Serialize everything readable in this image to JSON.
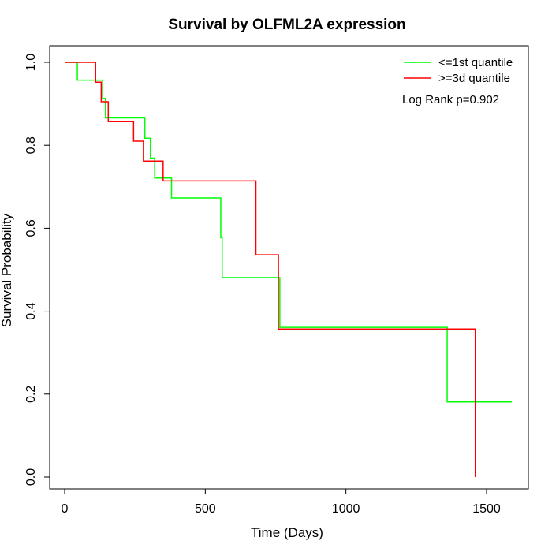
{
  "chart_data": {
    "type": "line",
    "step": true,
    "title": "Survival by OLFML2A expression",
    "xlabel": "Time (Days)",
    "ylabel": "Survival Probability",
    "xlim": [
      0,
      1650
    ],
    "ylim": [
      0,
      1.0
    ],
    "xticks": [
      0,
      500,
      1000,
      1500
    ],
    "xtick_labels": [
      "0",
      "500",
      "1000",
      "1500"
    ],
    "yticks": [
      0.0,
      0.2,
      0.4,
      0.6,
      0.8,
      1.0
    ],
    "ytick_labels": [
      "0.0",
      "0.2",
      "0.4",
      "0.6",
      "0.8",
      "1.0"
    ],
    "grid": false,
    "legend_position": "top-right",
    "annotation": "Log Rank p=0.902",
    "series": [
      {
        "name": "<=1st quantile",
        "color": "#00ff00",
        "x": [
          0,
          45,
          135,
          145,
          285,
          305,
          320,
          360,
          380,
          555,
          560,
          765,
          1360,
          1590
        ],
        "y": [
          1.0,
          0.957,
          0.913,
          0.866,
          0.817,
          0.769,
          0.721,
          0.721,
          0.673,
          0.577,
          0.481,
          0.361,
          0.181,
          0.181
        ]
      },
      {
        "name": ">=3d quantile",
        "color": "#ff0000",
        "x": [
          0,
          110,
          130,
          155,
          245,
          280,
          350,
          680,
          760,
          1460,
          1460
        ],
        "y": [
          1.0,
          0.952,
          0.905,
          0.857,
          0.81,
          0.762,
          0.714,
          0.536,
          0.357,
          0.357,
          0.0
        ]
      }
    ]
  }
}
